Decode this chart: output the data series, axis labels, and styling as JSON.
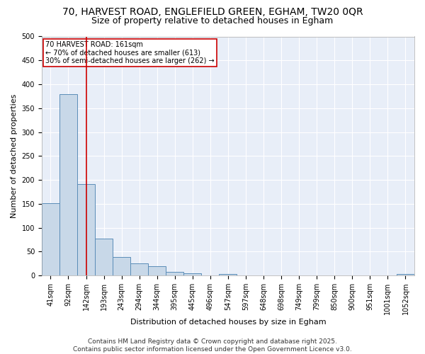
{
  "title1": "70, HARVEST ROAD, ENGLEFIELD GREEN, EGHAM, TW20 0QR",
  "title2": "Size of property relative to detached houses in Egham",
  "xlabel": "Distribution of detached houses by size in Egham",
  "ylabel": "Number of detached properties",
  "categories": [
    "41sqm",
    "92sqm",
    "142sqm",
    "193sqm",
    "243sqm",
    "294sqm",
    "344sqm",
    "395sqm",
    "445sqm",
    "496sqm",
    "547sqm",
    "597sqm",
    "648sqm",
    "698sqm",
    "749sqm",
    "799sqm",
    "850sqm",
    "900sqm",
    "951sqm",
    "1001sqm",
    "1052sqm"
  ],
  "values": [
    152,
    380,
    191,
    77,
    39,
    26,
    20,
    7,
    5,
    0,
    3,
    0,
    0,
    0,
    0,
    0,
    0,
    0,
    0,
    0,
    4
  ],
  "bar_color": "#c8d8e8",
  "bar_edge_color": "#5b8db8",
  "red_line_x": 2.0,
  "red_line_color": "#cc0000",
  "annotation_text": "70 HARVEST ROAD: 161sqm\n← 70% of detached houses are smaller (613)\n30% of semi-detached houses are larger (262) →",
  "annotation_box_color": "#ffffff",
  "annotation_box_edge": "#cc0000",
  "footer": "Contains HM Land Registry data © Crown copyright and database right 2025.\nContains public sector information licensed under the Open Government Licence v3.0.",
  "ylim": [
    0,
    500
  ],
  "yticks": [
    0,
    50,
    100,
    150,
    200,
    250,
    300,
    350,
    400,
    450,
    500
  ],
  "plot_bg_color": "#e8eef8",
  "fig_bg_color": "#ffffff",
  "grid_color": "#ffffff",
  "title_fontsize": 10,
  "title2_fontsize": 9,
  "axis_label_fontsize": 8,
  "tick_fontsize": 7,
  "annotation_fontsize": 7,
  "footer_fontsize": 6.5
}
